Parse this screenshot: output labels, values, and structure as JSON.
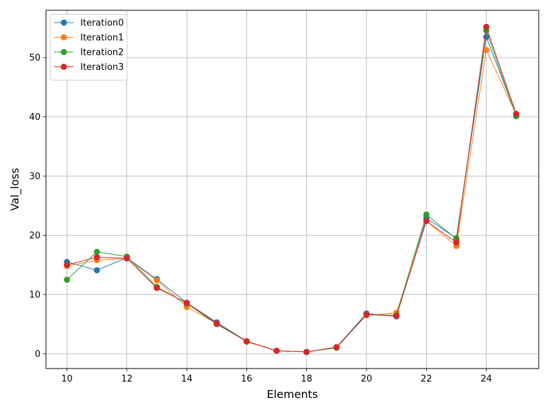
{
  "chart_data": {
    "type": "line",
    "xlabel": "Elements",
    "ylabel": "Val_loss",
    "xlim": [
      9.3,
      25.75
    ],
    "ylim": [
      -2.5,
      58.0
    ],
    "xticks": [
      10,
      12,
      14,
      16,
      18,
      20,
      22,
      24
    ],
    "yticks": [
      0,
      10,
      20,
      30,
      40,
      50
    ],
    "grid": true,
    "legend_position": "top-left",
    "x": [
      10,
      11,
      12,
      13,
      14,
      15,
      16,
      17,
      18,
      19,
      20,
      21,
      22,
      23,
      24,
      25
    ],
    "series": [
      {
        "name": "Iteration0",
        "color": "#1f77b4",
        "values": [
          15.5,
          14.1,
          16.2,
          12.6,
          8.6,
          5.3,
          2.1,
          0.5,
          0.3,
          1.1,
          6.8,
          6.3,
          22.9,
          19.5,
          53.5,
          40.3
        ]
      },
      {
        "name": "Iteration1",
        "color": "#ff7f0e",
        "values": [
          14.8,
          15.8,
          16.1,
          12.4,
          7.9,
          5.1,
          2.0,
          0.5,
          0.3,
          1.1,
          6.5,
          6.9,
          22.4,
          18.2,
          51.3,
          40.4
        ]
      },
      {
        "name": "Iteration2",
        "color": "#2ca02c",
        "values": [
          12.5,
          17.2,
          16.4,
          11.3,
          8.5,
          5.0,
          2.1,
          0.5,
          0.3,
          1.0,
          6.6,
          6.5,
          23.5,
          19.4,
          54.6,
          40.1
        ]
      },
      {
        "name": "Iteration3",
        "color": "#d62728",
        "values": [
          15.0,
          16.3,
          16.1,
          11.1,
          8.6,
          5.1,
          2.1,
          0.5,
          0.3,
          1.1,
          6.6,
          6.4,
          22.4,
          18.8,
          55.2,
          40.5
        ]
      }
    ]
  }
}
